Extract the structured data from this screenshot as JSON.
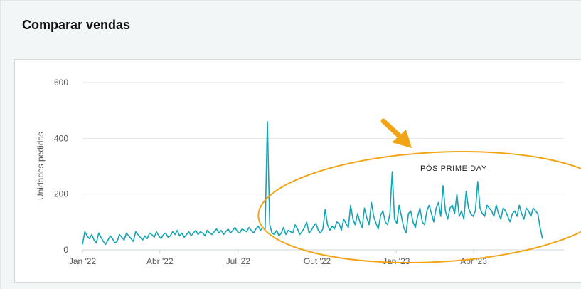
{
  "panel": {
    "title": "Comparar vendas"
  },
  "annotation": {
    "text": "PÓS PRIME DAY"
  },
  "colors": {
    "series": "#12a5b5",
    "annotation": "#f2a417",
    "grid": "#e6e6e6",
    "axis_text": "#555555"
  },
  "chart_data": {
    "type": "line",
    "title": "",
    "xlabel": "",
    "ylabel": "Unidades pedidas",
    "ylim": [
      0,
      600
    ],
    "yticks": [
      0,
      200,
      400,
      600
    ],
    "xticks": [
      "Jan '22",
      "Abr '22",
      "Jul '22",
      "Out '22",
      "Jan '23",
      "Abr '23"
    ],
    "xtick_dates": [
      "2022-01-01",
      "2022-04-01",
      "2022-07-01",
      "2022-10-01",
      "2023-01-01",
      "2023-04-01"
    ],
    "grid": "horizontal",
    "legend": "none",
    "series": [
      {
        "name": "",
        "start": "2022-01-01",
        "end": "2023-06-20",
        "values": [
          20,
          65,
          50,
          40,
          55,
          35,
          25,
          60,
          45,
          30,
          20,
          35,
          50,
          40,
          25,
          30,
          55,
          45,
          35,
          60,
          50,
          40,
          30,
          65,
          55,
          45,
          35,
          50,
          40,
          60,
          55,
          45,
          65,
          50,
          40,
          55,
          60,
          45,
          50,
          65,
          55,
          70,
          50,
          60,
          45,
          55,
          65,
          50,
          60,
          70,
          55,
          65,
          60,
          50,
          70,
          60,
          55,
          65,
          75,
          60,
          70,
          55,
          65,
          75,
          60,
          70,
          80,
          65,
          60,
          75,
          70,
          65,
          80,
          70,
          60,
          75,
          85,
          70,
          80,
          75,
          460,
          90,
          60,
          55,
          70,
          50,
          60,
          80,
          55,
          70,
          65,
          60,
          90,
          75,
          55,
          65,
          80,
          100,
          60,
          70,
          85,
          95,
          70,
          60,
          75,
          145,
          90,
          70,
          85,
          75,
          100,
          95,
          70,
          110,
          95,
          80,
          160,
          110,
          90,
          130,
          100,
          80,
          150,
          115,
          90,
          170,
          120,
          95,
          75,
          125,
          140,
          100,
          90,
          130,
          280,
          110,
          95,
          160,
          120,
          80,
          60,
          130,
          140,
          100,
          80,
          120,
          150,
          100,
          90,
          140,
          160,
          130,
          100,
          150,
          170,
          120,
          230,
          140,
          110,
          150,
          160,
          130,
          200,
          120,
          140,
          110,
          210,
          150,
          130,
          120,
          140,
          245,
          150,
          130,
          120,
          160,
          150,
          140,
          120,
          160,
          130,
          110,
          150,
          140,
          120,
          100,
          130,
          140,
          120,
          160,
          130,
          110,
          150,
          140,
          120,
          150,
          140,
          130,
          80,
          40
        ]
      }
    ]
  }
}
